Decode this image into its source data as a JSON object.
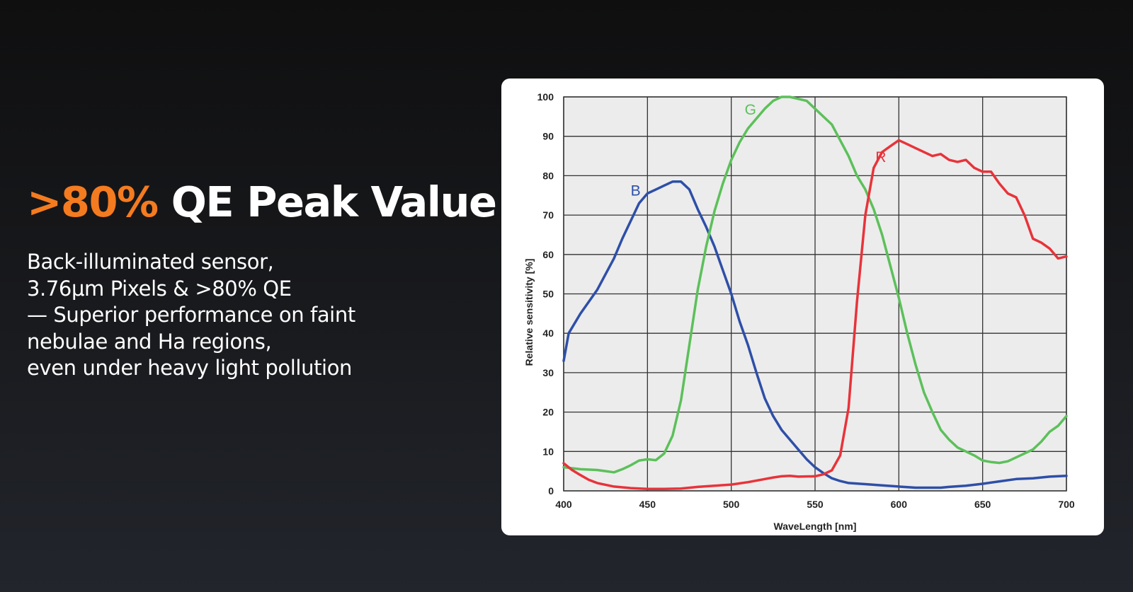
{
  "headline": {
    "accent": ">80%",
    "rest": " QE Peak Value"
  },
  "body_lines": [
    "Back-illuminated sensor,",
    "3.76μm Pixels & >80% QE",
    "— Superior performance on faint",
    "nebulae and Ha regions,",
    "even under heavy light pollution"
  ],
  "colors": {
    "accent": "#f47b1f",
    "text": "#ffffff",
    "series_B": "#2e4fa8",
    "series_G": "#5cc05a",
    "series_R": "#e8333a"
  },
  "chart_data": {
    "type": "line",
    "title": "",
    "xlabel": "WaveLength [nm]",
    "ylabel": "Relative sensitivity [%]",
    "xlim": [
      400,
      700
    ],
    "ylim": [
      0,
      100
    ],
    "xticks": [
      400,
      450,
      500,
      550,
      600,
      650,
      700
    ],
    "yticks": [
      0,
      10,
      20,
      30,
      40,
      50,
      60,
      70,
      80,
      90,
      100
    ],
    "grid": true,
    "series": [
      {
        "name": "B",
        "color": "#2e4fa8",
        "label_at": [
          440,
          75
        ],
        "points": [
          [
            400,
            33
          ],
          [
            403,
            40
          ],
          [
            410,
            45
          ],
          [
            420,
            51
          ],
          [
            425,
            55
          ],
          [
            430,
            59
          ],
          [
            435,
            64
          ],
          [
            445,
            73
          ],
          [
            450,
            75.5
          ],
          [
            455,
            76.5
          ],
          [
            460,
            77.5
          ],
          [
            465,
            78.5
          ],
          [
            470,
            78.5
          ],
          [
            475,
            76.5
          ],
          [
            480,
            71.5
          ],
          [
            485,
            67
          ],
          [
            490,
            62
          ],
          [
            495,
            56
          ],
          [
            500,
            50
          ],
          [
            505,
            43
          ],
          [
            510,
            37
          ],
          [
            515,
            30
          ],
          [
            520,
            23.5
          ],
          [
            525,
            19
          ],
          [
            530,
            15.5
          ],
          [
            535,
            13
          ],
          [
            540,
            10.5
          ],
          [
            545,
            8
          ],
          [
            550,
            6
          ],
          [
            555,
            4.5
          ],
          [
            560,
            3.2
          ],
          [
            565,
            2.5
          ],
          [
            570,
            2
          ],
          [
            580,
            1.7
          ],
          [
            590,
            1.4
          ],
          [
            600,
            1.1
          ],
          [
            610,
            0.8
          ],
          [
            625,
            0.8
          ],
          [
            630,
            1
          ],
          [
            640,
            1.3
          ],
          [
            650,
            1.8
          ],
          [
            660,
            2.4
          ],
          [
            670,
            3
          ],
          [
            680,
            3.2
          ],
          [
            690,
            3.6
          ],
          [
            700,
            3.8
          ]
        ]
      },
      {
        "name": "G",
        "color": "#5cc05a",
        "label_at": [
          508,
          95.5
        ],
        "points": [
          [
            400,
            6
          ],
          [
            410,
            5.5
          ],
          [
            420,
            5.3
          ],
          [
            425,
            5
          ],
          [
            430,
            4.7
          ],
          [
            435,
            5.5
          ],
          [
            440,
            6.5
          ],
          [
            445,
            7.7
          ],
          [
            450,
            8
          ],
          [
            455,
            7.8
          ],
          [
            460,
            9.5
          ],
          [
            465,
            14
          ],
          [
            470,
            23
          ],
          [
            475,
            37
          ],
          [
            480,
            51
          ],
          [
            485,
            62
          ],
          [
            490,
            71
          ],
          [
            495,
            78
          ],
          [
            500,
            84
          ],
          [
            505,
            88.5
          ],
          [
            510,
            92
          ],
          [
            515,
            94.5
          ],
          [
            520,
            97
          ],
          [
            525,
            99
          ],
          [
            530,
            100
          ],
          [
            535,
            100
          ],
          [
            540,
            99.5
          ],
          [
            545,
            99
          ],
          [
            550,
            97
          ],
          [
            555,
            95
          ],
          [
            560,
            93
          ],
          [
            565,
            89
          ],
          [
            570,
            85
          ],
          [
            575,
            80
          ],
          [
            580,
            76.5
          ],
          [
            585,
            71.5
          ],
          [
            590,
            65
          ],
          [
            595,
            57
          ],
          [
            600,
            49
          ],
          [
            605,
            40
          ],
          [
            610,
            32
          ],
          [
            615,
            25
          ],
          [
            620,
            20
          ],
          [
            625,
            15.5
          ],
          [
            630,
            13
          ],
          [
            635,
            11
          ],
          [
            640,
            10
          ],
          [
            645,
            9
          ],
          [
            650,
            7.7
          ],
          [
            655,
            7.3
          ],
          [
            660,
            7.1
          ],
          [
            665,
            7.5
          ],
          [
            670,
            8.5
          ],
          [
            680,
            10.5
          ],
          [
            685,
            12.5
          ],
          [
            690,
            15
          ],
          [
            695,
            16.5
          ],
          [
            700,
            19
          ]
        ]
      },
      {
        "name": "R",
        "color": "#e8333a",
        "label_at": [
          586,
          83.5
        ],
        "points": [
          [
            400,
            7
          ],
          [
            405,
            5.3
          ],
          [
            410,
            4
          ],
          [
            415,
            2.8
          ],
          [
            420,
            2
          ],
          [
            430,
            1.1
          ],
          [
            440,
            0.7
          ],
          [
            450,
            0.5
          ],
          [
            460,
            0.5
          ],
          [
            470,
            0.6
          ],
          [
            480,
            1
          ],
          [
            490,
            1.3
          ],
          [
            500,
            1.6
          ],
          [
            510,
            2.2
          ],
          [
            520,
            3
          ],
          [
            525,
            3.4
          ],
          [
            530,
            3.7
          ],
          [
            535,
            3.8
          ],
          [
            540,
            3.6
          ],
          [
            550,
            3.7
          ],
          [
            555,
            4.2
          ],
          [
            560,
            5.2
          ],
          [
            565,
            9
          ],
          [
            570,
            21
          ],
          [
            575,
            48
          ],
          [
            580,
            70
          ],
          [
            585,
            82
          ],
          [
            590,
            86
          ],
          [
            595,
            87.5
          ],
          [
            600,
            89
          ],
          [
            605,
            88
          ],
          [
            610,
            87
          ],
          [
            620,
            85
          ],
          [
            625,
            85.5
          ],
          [
            630,
            84
          ],
          [
            635,
            83.5
          ],
          [
            640,
            84
          ],
          [
            645,
            82
          ],
          [
            650,
            81
          ],
          [
            655,
            81
          ],
          [
            660,
            78
          ],
          [
            665,
            75.5
          ],
          [
            670,
            74.5
          ],
          [
            675,
            70
          ],
          [
            680,
            64
          ],
          [
            685,
            63
          ],
          [
            690,
            61.5
          ],
          [
            695,
            59
          ],
          [
            700,
            59.5
          ]
        ]
      }
    ]
  }
}
